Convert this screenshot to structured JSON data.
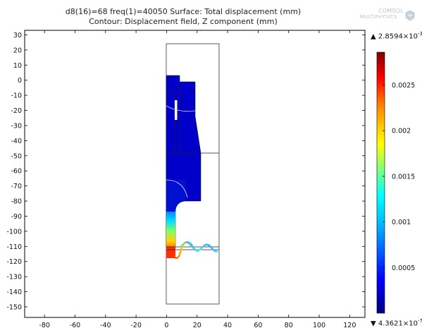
{
  "title": {
    "line1": "d8(16)=68 freq(1)=40050   Surface: Total displacement (mm)",
    "line2": "Contour: Displacement field, Z component (mm)"
  },
  "logo": {
    "line1": "COMSOL",
    "line2": "MULTIPHYSICS",
    "icon": "comsol-logo-icon"
  },
  "x_axis": {
    "range": [
      -93,
      130
    ],
    "ticks": [
      "-80",
      "-60",
      "-40",
      "-20",
      "0",
      "20",
      "40",
      "60",
      "80",
      "100",
      "120"
    ],
    "tick_values": [
      -80,
      -60,
      -40,
      -20,
      0,
      20,
      40,
      60,
      80,
      100,
      120
    ]
  },
  "y_axis": {
    "range": [
      -157,
      33
    ],
    "ticks": [
      "30",
      "20",
      "10",
      "0",
      "-10",
      "-20",
      "-30",
      "-40",
      "-50",
      "-60",
      "-70",
      "-80",
      "-90",
      "-100",
      "-110",
      "-120",
      "-130",
      "-140",
      "-150"
    ],
    "tick_values": [
      30,
      20,
      10,
      0,
      -10,
      -20,
      -30,
      -40,
      -50,
      -60,
      -70,
      -80,
      -90,
      -100,
      -110,
      -120,
      -130,
      -140,
      -150
    ]
  },
  "colorbar": {
    "max_mantissa": "2.8594",
    "max_base": "×10",
    "max_exp": "-3",
    "min_mantissa": "4.3621",
    "min_base": "×10",
    "min_exp": "-7",
    "max_marker": "▲",
    "min_marker": "▼",
    "range": [
      4.3621e-07,
      0.0028594
    ],
    "ticks": [
      "0.0025",
      "0.002",
      "0.0015",
      "0.001",
      "0.0005"
    ],
    "tick_values": [
      0.0025,
      0.002,
      0.0015,
      0.001,
      0.0005
    ],
    "colors": [
      "#00007f",
      "#0000ff",
      "#007fff",
      "#00ffff",
      "#7fff7f",
      "#ffff00",
      "#ff7f00",
      "#ff0000",
      "#7f0000"
    ]
  }
}
